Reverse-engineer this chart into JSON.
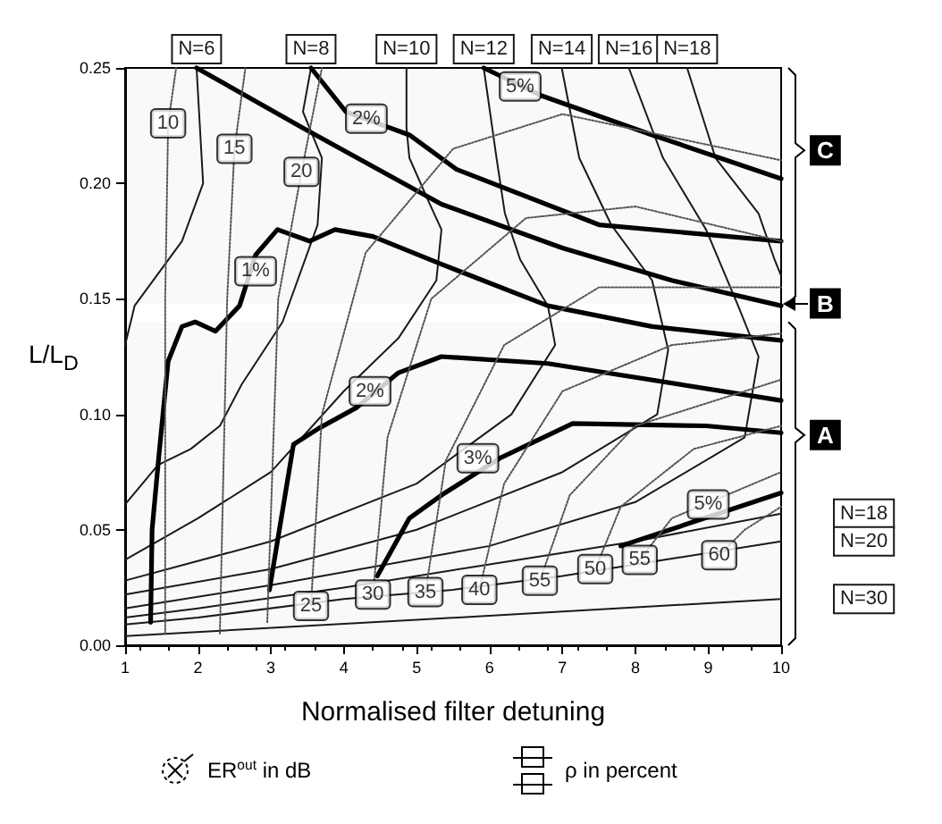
{
  "chart_data": {
    "type": "line",
    "xlabel": "Normalised filter detuning",
    "ylabel": "L/L$_{D}$",
    "xlim": [
      1,
      10
    ],
    "xticks": [
      1,
      2,
      3,
      4,
      5,
      6,
      7,
      8,
      9,
      10
    ],
    "ylim": [
      0,
      0.25
    ],
    "yticks": [
      {
        "value": 0,
        "label": "0.00"
      },
      {
        "value": 0.05,
        "label": "0.05"
      },
      {
        "value": 0.1,
        "label": "0.10"
      },
      {
        "value": 0.15,
        "label": "0.15"
      },
      {
        "value": 0.2,
        "label": "0.20"
      },
      {
        "value": 0.25,
        "label": "0.25"
      }
    ],
    "grid": false,
    "legend": false,
    "marker": "none",
    "line_style": "solid",
    "series": [
      {
        "name": "N=6",
        "color": "#1a1a1a",
        "x": [
          1.98,
          2.07,
          1.78,
          1.13,
          1.0
        ],
        "values": [
          0.25,
          0.2,
          0.175,
          0.147,
          0.13
        ]
      },
      {
        "name": "N=8",
        "color": "#1a1a1a",
        "x": [
          3.55,
          3.44,
          3.7,
          3.64,
          3.16,
          2.6,
          2.3,
          1.9,
          1.45,
          1.0
        ],
        "values": [
          0.25,
          0.231,
          0.211,
          0.182,
          0.14,
          0.113,
          0.095,
          0.085,
          0.078,
          0.061
        ]
      },
      {
        "name": "N=10",
        "color": "#1a1a1a",
        "x": [
          4.86,
          4.86,
          4.9,
          5.18,
          5.34,
          5.27,
          4.75,
          4.0,
          3.0,
          2.0,
          1.0
        ],
        "values": [
          0.25,
          0.224,
          0.211,
          0.191,
          0.18,
          0.158,
          0.133,
          0.11,
          0.075,
          0.055,
          0.037
        ]
      },
      {
        "name": "N=12",
        "color": "#1a1a1a",
        "x": [
          5.92,
          6.1,
          6.21,
          6.42,
          6.8,
          6.9,
          6.3,
          5.0,
          3.0,
          1.0
        ],
        "values": [
          0.25,
          0.21,
          0.187,
          0.167,
          0.147,
          0.13,
          0.1,
          0.07,
          0.045,
          0.028
        ]
      },
      {
        "name": "N=14",
        "color": "#1a1a1a",
        "x": [
          6.99,
          7.23,
          7.67,
          8.23,
          8.45,
          8.3,
          7.0,
          5.0,
          3.0,
          1.0
        ],
        "values": [
          0.25,
          0.211,
          0.182,
          0.158,
          0.128,
          0.1,
          0.075,
          0.05,
          0.033,
          0.022
        ]
      },
      {
        "name": "N=16",
        "color": "#1a1a1a",
        "x": [
          7.91,
          8.38,
          8.97,
          9.41,
          9.69,
          9.5,
          8.0,
          6.0,
          3.0,
          1.0
        ],
        "values": [
          0.25,
          0.211,
          0.18,
          0.147,
          0.125,
          0.09,
          0.062,
          0.043,
          0.026,
          0.016
        ]
      },
      {
        "name": "N=18",
        "color": "#1a1a1a",
        "x": [
          8.71,
          9.1,
          9.69,
          9.91,
          10
        ],
        "values": [
          0.25,
          0.211,
          0.187,
          0.167,
          0.16
        ]
      },
      {
        "name": "N=18",
        "color": "#1a1a1a",
        "x": [
          10,
          8,
          6,
          4,
          2,
          1
        ],
        "values": [
          0.057,
          0.045,
          0.035,
          0.025,
          0.016,
          0.012
        ]
      },
      {
        "name": "N=20",
        "color": "#1a1a1a",
        "x": [
          10,
          8.6,
          7,
          5.5,
          4,
          2,
          1
        ],
        "values": [
          0.045,
          0.038,
          0.03,
          0.024,
          0.02,
          0.012,
          0.009
        ]
      },
      {
        "name": "N=30",
        "color": "#1a1a1a",
        "x": [
          10,
          5,
          1
        ],
        "values": [
          0.02,
          0.011,
          0.004
        ]
      },
      {
        "color": "#000000",
        "x": [
          1.35,
          1.37,
          1.46,
          1.59,
          1.78,
          1.96,
          2.24,
          2.57,
          2.79,
          3.09,
          3.53,
          3.88,
          4.4,
          5.34,
          6.8,
          8.23,
          10
        ],
        "values": [
          0.01,
          0.05,
          0.081,
          0.123,
          0.138,
          0.14,
          0.136,
          0.147,
          0.169,
          0.18,
          0.175,
          0.18,
          0.177,
          0.165,
          0.147,
          0.138,
          0.132
        ]
      },
      {
        "color": "#000000",
        "x": [
          1.98,
          3.44,
          5.34,
          7.0,
          8.5,
          10
        ],
        "values": [
          0.25,
          0.224,
          0.191,
          0.172,
          0.158,
          0.147
        ]
      },
      {
        "color": "#000000",
        "x": [
          3.55,
          4.03,
          4.9,
          5.55,
          7.51,
          10
        ],
        "values": [
          0.25,
          0.231,
          0.221,
          0.206,
          0.182,
          0.175
        ]
      },
      {
        "color": "#000000",
        "x": [
          5.92,
          6.71,
          8.23,
          10
        ],
        "values": [
          0.25,
          0.238,
          0.221,
          0.202
        ]
      },
      {
        "color": "#000000",
        "x": [
          2.98,
          3.31,
          3.66,
          4.18,
          4.75,
          5.34,
          6.8,
          10
        ],
        "values": [
          0.024,
          0.087,
          0.094,
          0.103,
          0.118,
          0.125,
          0.122,
          0.106
        ]
      },
      {
        "color": "#000000",
        "x": [
          4.46,
          4.9,
          5.34,
          6.14,
          7.14,
          8.97,
          10
        ],
        "values": [
          0.03,
          0.055,
          0.065,
          0.081,
          0.096,
          0.095,
          0.092
        ]
      },
      {
        "color": "#000000",
        "x": [
          7.8,
          10
        ],
        "values": [
          0.043,
          0.066
        ]
      },
      {
        "color": "#555555",
        "line_style": "dotted",
        "x": [
          1.55,
          1.55,
          1.59,
          1.7
        ],
        "values": [
          0.005,
          0.15,
          0.226,
          0.25
        ]
      },
      {
        "color": "#555555",
        "line_style": "dotted",
        "x": [
          2.3,
          2.4,
          2.5,
          2.65
        ],
        "values": [
          0.005,
          0.15,
          0.215,
          0.25
        ]
      },
      {
        "color": "#555555",
        "line_style": "dotted",
        "x": [
          2.95,
          3.1,
          3.42,
          3.7
        ],
        "values": [
          0.01,
          0.15,
          0.205,
          0.25
        ]
      },
      {
        "color": "#555555",
        "line_style": "dotted",
        "x": [
          3.55,
          3.7,
          4.3,
          5.5,
          7,
          10
        ],
        "values": [
          0.017,
          0.1,
          0.17,
          0.215,
          0.23,
          0.21
        ]
      },
      {
        "color": "#555555",
        "line_style": "dotted",
        "x": [
          4.4,
          4.6,
          5.2,
          6.5,
          8,
          10
        ],
        "values": [
          0.022,
          0.09,
          0.15,
          0.185,
          0.19,
          0.175
        ]
      },
      {
        "color": "#555555",
        "line_style": "dotted",
        "x": [
          5.12,
          5.4,
          6.2,
          7.5,
          10
        ],
        "values": [
          0.023,
          0.08,
          0.13,
          0.155,
          0.155
        ]
      },
      {
        "color": "#555555",
        "line_style": "dotted",
        "x": [
          5.86,
          6.2,
          7,
          8.5,
          10
        ],
        "values": [
          0.024,
          0.07,
          0.11,
          0.13,
          0.135
        ]
      },
      {
        "color": "#555555",
        "line_style": "dotted",
        "x": [
          6.69,
          7.1,
          8,
          10
        ],
        "values": [
          0.028,
          0.065,
          0.095,
          0.115
        ]
      },
      {
        "color": "#555555",
        "line_style": "dotted",
        "x": [
          7.45,
          7.8,
          8.8,
          10
        ],
        "values": [
          0.033,
          0.06,
          0.085,
          0.095
        ]
      },
      {
        "color": "#555555",
        "line_style": "dotted",
        "x": [
          8.06,
          8.5,
          10
        ],
        "values": [
          0.037,
          0.055,
          0.075
        ]
      },
      {
        "color": "#555555",
        "line_style": "dotted",
        "x": [
          9.15,
          9.5,
          10
        ],
        "values": [
          0.039,
          0.05,
          0.06
        ]
      }
    ],
    "bands": [
      {
        "axis": "y",
        "from": 0.148,
        "to": 0.25,
        "label": "C"
      },
      {
        "axis": "y",
        "from": 0,
        "to": 0.14,
        "label": "A"
      }
    ],
    "ref_lines": [
      {
        "axis": "y",
        "value": 0.148,
        "label": "B"
      }
    ],
    "annotations": [
      {
        "text": "10",
        "x": 1.59,
        "y": 0.226
      },
      {
        "text": "15",
        "x": 2.5,
        "y": 0.215
      },
      {
        "text": "20",
        "x": 3.42,
        "y": 0.205
      },
      {
        "text": "25",
        "x": 3.55,
        "y": 0.017
      },
      {
        "text": "30",
        "x": 4.4,
        "y": 0.022
      },
      {
        "text": "35",
        "x": 5.12,
        "y": 0.023
      },
      {
        "text": "40",
        "x": 5.86,
        "y": 0.024
      },
      {
        "text": "55",
        "x": 6.69,
        "y": 0.028
      },
      {
        "text": "50",
        "x": 7.45,
        "y": 0.033
      },
      {
        "text": "55",
        "x": 8.06,
        "y": 0.037
      },
      {
        "text": "60",
        "x": 9.15,
        "y": 0.039
      },
      {
        "text": "1%",
        "x": 2.79,
        "y": 0.162
      },
      {
        "text": "2%",
        "x": 4.31,
        "y": 0.228
      },
      {
        "text": "5%",
        "x": 6.42,
        "y": 0.242
      },
      {
        "text": "2%",
        "x": 4.36,
        "y": 0.11
      },
      {
        "text": "3%",
        "x": 5.84,
        "y": 0.081
      },
      {
        "text": "5%",
        "x": 9.0,
        "y": 0.061
      },
      "ER$^{out}$ in dB",
      "ρ in percent"
    ]
  }
}
